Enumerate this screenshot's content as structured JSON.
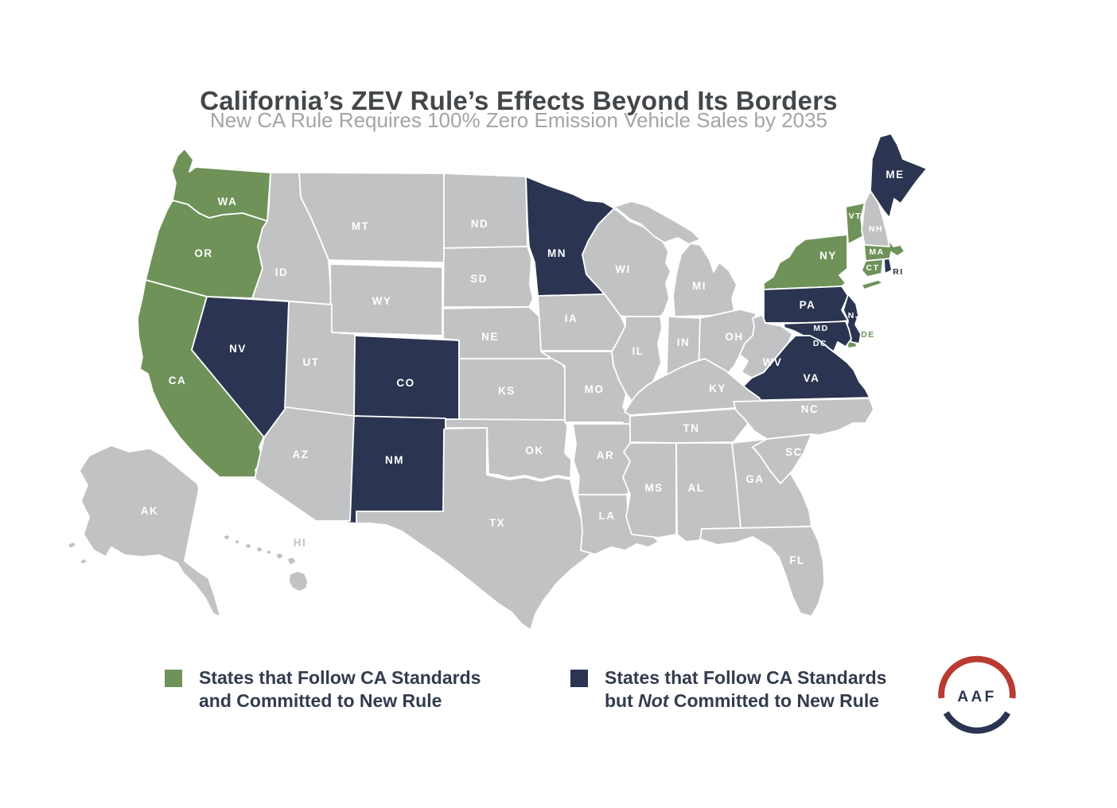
{
  "title": "California’s ZEV Rule’s Effects Beyond Its Borders",
  "subtitle": "New CA Rule Requires 100% Zero Emission Vehicle Sales by 2035",
  "colors": {
    "committed_green": "#6e9258",
    "follow_navy": "#2b3450",
    "other_gray": "#c1c2c4",
    "state_border": "#ffffff",
    "label_white": "#ffffff",
    "title_text": "#43474a",
    "subtitle_text": "#a2a5a8",
    "legend_text": "#333b4d",
    "logo_red": "#b93a31",
    "logo_navy": "#2b3450"
  },
  "legend": {
    "committed": {
      "line1": "States that Follow CA Standards",
      "line2": "and Committed to New Rule"
    },
    "follows": {
      "line1": "States that Follow CA Standards",
      "line2_prefix": "but ",
      "line2_em": "Not",
      "line2_suffix": " Committed to New Rule"
    }
  },
  "logo": {
    "text": "AAF"
  },
  "map": {
    "states": [
      {
        "code": "WA",
        "status": "committed"
      },
      {
        "code": "OR",
        "status": "committed"
      },
      {
        "code": "CA",
        "status": "committed"
      },
      {
        "code": "NY",
        "status": "committed"
      },
      {
        "code": "VT",
        "status": "committed",
        "small": true
      },
      {
        "code": "MA",
        "status": "committed",
        "small": true
      },
      {
        "code": "CT",
        "status": "committed",
        "small": true
      },
      {
        "code": "DE",
        "status": "committed",
        "small": true,
        "label_color": "committed_green"
      },
      {
        "code": "NV",
        "status": "follows"
      },
      {
        "code": "CO",
        "status": "follows"
      },
      {
        "code": "NM",
        "status": "follows"
      },
      {
        "code": "MN",
        "status": "follows"
      },
      {
        "code": "PA",
        "status": "follows"
      },
      {
        "code": "NJ",
        "status": "follows",
        "small": true
      },
      {
        "code": "MD",
        "status": "follows",
        "small": true
      },
      {
        "code": "DC",
        "status": "follows",
        "small": true
      },
      {
        "code": "VA",
        "status": "follows"
      },
      {
        "code": "ME",
        "status": "follows"
      },
      {
        "code": "RI",
        "status": "follows",
        "small": true,
        "label_color": "follow_navy"
      },
      {
        "code": "MT",
        "status": "none"
      },
      {
        "code": "ID",
        "status": "none"
      },
      {
        "code": "WY",
        "status": "none"
      },
      {
        "code": "UT",
        "status": "none"
      },
      {
        "code": "AZ",
        "status": "none"
      },
      {
        "code": "ND",
        "status": "none"
      },
      {
        "code": "SD",
        "status": "none"
      },
      {
        "code": "NE",
        "status": "none"
      },
      {
        "code": "KS",
        "status": "none"
      },
      {
        "code": "OK",
        "status": "none"
      },
      {
        "code": "TX",
        "status": "none"
      },
      {
        "code": "IA",
        "status": "none"
      },
      {
        "code": "MO",
        "status": "none"
      },
      {
        "code": "AR",
        "status": "none"
      },
      {
        "code": "LA",
        "status": "none"
      },
      {
        "code": "WI",
        "status": "none"
      },
      {
        "code": "IL",
        "status": "none"
      },
      {
        "code": "IN",
        "status": "none"
      },
      {
        "code": "MI",
        "status": "none"
      },
      {
        "code": "OH",
        "status": "none"
      },
      {
        "code": "KY",
        "status": "none"
      },
      {
        "code": "TN",
        "status": "none"
      },
      {
        "code": "MS",
        "status": "none"
      },
      {
        "code": "AL",
        "status": "none"
      },
      {
        "code": "GA",
        "status": "none"
      },
      {
        "code": "WV",
        "status": "none"
      },
      {
        "code": "NC",
        "status": "none"
      },
      {
        "code": "SC",
        "status": "none"
      },
      {
        "code": "FL",
        "status": "none"
      },
      {
        "code": "NH",
        "status": "none",
        "small": true
      },
      {
        "code": "AK",
        "status": "none"
      },
      {
        "code": "HI",
        "status": "none",
        "label_color": "other_gray"
      }
    ]
  }
}
